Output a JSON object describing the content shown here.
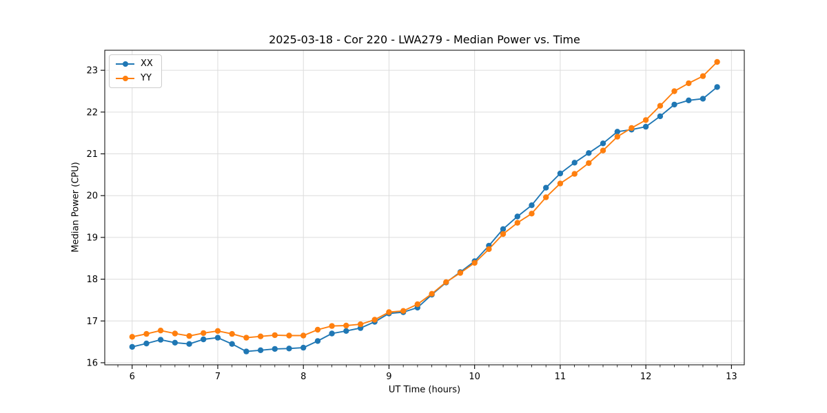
{
  "chart_data": {
    "type": "line",
    "title": "2025-03-18 - Cor 220 - LWA279 - Median Power vs. Time",
    "xlabel": "UT Time (hours)",
    "ylabel": "Median Power (CPU)",
    "xlim": [
      5.68,
      13.15
    ],
    "ylim": [
      15.95,
      23.48
    ],
    "xticks": [
      6,
      7,
      8,
      9,
      10,
      11,
      12,
      13
    ],
    "yticks": [
      16,
      17,
      18,
      19,
      20,
      21,
      22,
      23
    ],
    "grid": true,
    "legend_position": "upper left",
    "x": [
      6.0,
      6.167,
      6.333,
      6.5,
      6.667,
      6.833,
      7.0,
      7.167,
      7.333,
      7.5,
      7.667,
      7.833,
      8.0,
      8.167,
      8.333,
      8.5,
      8.667,
      8.833,
      9.0,
      9.167,
      9.333,
      9.5,
      9.667,
      9.833,
      10.0,
      10.167,
      10.333,
      10.5,
      10.667,
      10.833,
      11.0,
      11.167,
      11.333,
      11.5,
      11.667,
      11.833,
      12.0,
      12.167,
      12.333,
      12.5,
      12.667,
      12.833
    ],
    "series": [
      {
        "name": "XX",
        "color": "#1f77b4",
        "values": [
          16.38,
          16.46,
          16.55,
          16.48,
          16.45,
          16.56,
          16.6,
          16.45,
          16.27,
          16.3,
          16.33,
          16.34,
          16.36,
          16.52,
          16.7,
          16.76,
          16.83,
          16.98,
          17.18,
          17.21,
          17.32,
          17.63,
          17.92,
          18.17,
          18.43,
          18.8,
          19.2,
          19.5,
          19.77,
          20.19,
          20.53,
          20.79,
          21.02,
          21.25,
          21.53,
          21.58,
          21.65,
          21.9,
          22.18,
          22.28,
          22.32,
          22.6
        ]
      },
      {
        "name": "YY",
        "color": "#ff7f0e",
        "values": [
          16.62,
          16.69,
          16.77,
          16.7,
          16.64,
          16.71,
          16.76,
          16.69,
          16.6,
          16.63,
          16.66,
          16.65,
          16.65,
          16.79,
          16.88,
          16.89,
          16.92,
          17.03,
          17.21,
          17.24,
          17.4,
          17.65,
          17.93,
          18.15,
          18.39,
          18.72,
          19.08,
          19.35,
          19.57,
          19.96,
          20.29,
          20.52,
          20.78,
          21.08,
          21.41,
          21.62,
          21.81,
          22.15,
          22.5,
          22.69,
          22.86,
          23.2
        ]
      }
    ]
  },
  "style": {
    "grid_color": "#dcdcdc",
    "spine_color": "#000000",
    "tick_color": "#000000",
    "background": "#ffffff"
  }
}
